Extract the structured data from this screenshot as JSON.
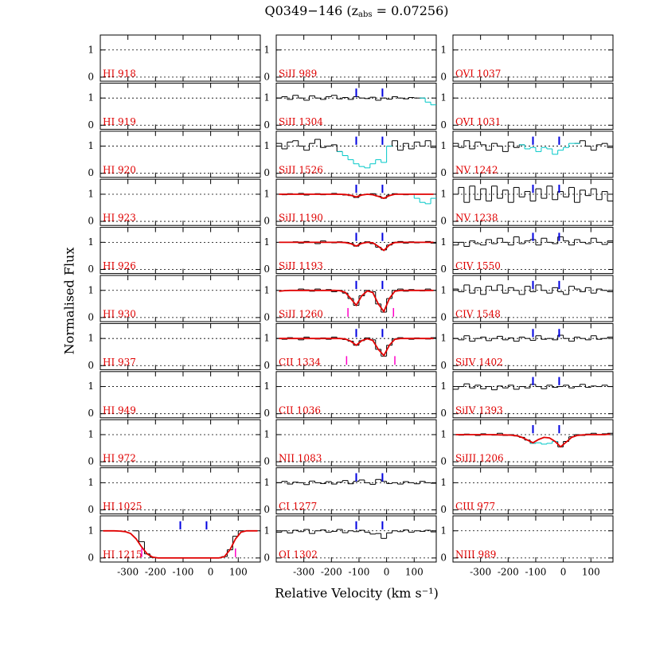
{
  "chart_data": {
    "type": "stacked-spectra",
    "title": "Q0349−146 (z",
    "title_sub": "abs",
    "title_end": " = 0.07256)",
    "xlabel": "Relative Velocity (km s⁻¹)",
    "ylabel": "Normalised Flux",
    "xlim": [
      -400,
      180
    ],
    "ylim": [
      -0.15,
      1.55
    ],
    "xticks": [
      -300,
      -200,
      -100,
      0,
      100
    ],
    "yticks": [
      0,
      1
    ],
    "grid": true,
    "colors": {
      "flux": "#000000",
      "blend": "#00c8c8",
      "fit": "#e00000",
      "components": "#0000e0",
      "markers": "#ff00c8",
      "label": "#e00000"
    },
    "velocity_grid": [
      -390,
      -370,
      -350,
      -330,
      -310,
      -290,
      -270,
      -250,
      -230,
      -210,
      -190,
      -170,
      -150,
      -130,
      -110,
      -90,
      -70,
      -50,
      -30,
      -10,
      10,
      30,
      50,
      70,
      90,
      110,
      130,
      150,
      170
    ],
    "columns": [
      [
        {
          "label": "HI 918"
        },
        {
          "label": "HI 919"
        },
        {
          "label": "HI 920"
        },
        {
          "label": "HI 923"
        },
        {
          "label": "HI 926"
        },
        {
          "label": "HI 930"
        },
        {
          "label": "HI 937"
        },
        {
          "label": "HI 949"
        },
        {
          "label": "HI 972"
        },
        {
          "label": "HI 1025"
        },
        {
          "label": "HI 1215",
          "components": [
            -110,
            -15
          ],
          "markers": [
            -250,
            90
          ],
          "flux": [
            null,
            null,
            null,
            null,
            null,
            null,
            1.0,
            0.6,
            0.15,
            0.02,
            0.0,
            0.0,
            0.0,
            0.0,
            0.0,
            0.0,
            0.0,
            0.0,
            0.0,
            0.0,
            0.0,
            0.0,
            0.05,
            0.3,
            0.8,
            1.0,
            null,
            null,
            null
          ],
          "fit": [
            1,
            1,
            1,
            0.99,
            0.97,
            0.9,
            0.7,
            0.4,
            0.15,
            0.03,
            0,
            0,
            0,
            0,
            0,
            0,
            0,
            0,
            0,
            0,
            0,
            0,
            0.05,
            0.3,
            0.7,
            0.95,
            1,
            1,
            1
          ]
        }
      ],
      [
        {
          "label": "SiII 989"
        },
        {
          "label": "SiII 1304",
          "components": [
            -110,
            -15
          ],
          "flux": [
            1.0,
            1.05,
            0.95,
            1.1,
            1.0,
            0.92,
            1.08,
            1.0,
            0.95,
            1.05,
            1.1,
            0.97,
            1.02,
            0.95,
            1.05,
            1.0,
            0.98,
            1.03,
            0.92,
            1.0,
            0.96,
            1.05,
            1.0,
            0.97,
            1.02,
            1.0,
            1.0,
            null,
            null
          ],
          "blend": [
            null,
            null,
            null,
            null,
            null,
            null,
            null,
            null,
            null,
            null,
            null,
            null,
            null,
            null,
            null,
            null,
            null,
            null,
            null,
            null,
            null,
            null,
            null,
            null,
            null,
            null,
            1.0,
            0.85,
            0.75
          ]
        },
        {
          "label": "SiII 1526",
          "components": [
            -110,
            -15
          ],
          "flux": [
            1.1,
            0.9,
            1.15,
            1.2,
            1.0,
            0.85,
            1.1,
            1.25,
            0.95,
            1.0,
            1.05,
            0.8,
            null,
            null,
            null,
            null,
            null,
            null,
            null,
            null,
            1.0,
            1.2,
            0.85,
            1.1,
            0.9,
            1.15,
            1.0,
            1.2,
            0.95
          ],
          "blend": [
            null,
            null,
            null,
            null,
            null,
            null,
            null,
            null,
            null,
            null,
            null,
            0.8,
            0.65,
            0.5,
            0.35,
            0.25,
            0.2,
            0.35,
            0.5,
            0.4,
            1.0,
            null,
            null,
            null,
            null,
            null,
            null,
            null,
            null
          ]
        },
        {
          "label": "SiII 1190",
          "components": [
            -110,
            -15
          ],
          "flux": [
            1.0,
            0.98,
            1.02,
            1.0,
            1.03,
            0.97,
            1.0,
            1.02,
            0.98,
            1.0,
            1.03,
            0.99,
            0.97,
            0.95,
            0.88,
            0.98,
            1.0,
            1.02,
            0.93,
            0.85,
            0.97,
            1.02,
            1.0,
            0.98,
            1.0,
            null,
            null,
            null,
            null
          ],
          "blend": [
            null,
            null,
            null,
            null,
            null,
            null,
            null,
            null,
            null,
            null,
            null,
            null,
            null,
            null,
            null,
            null,
            null,
            null,
            null,
            null,
            null,
            null,
            null,
            null,
            1.0,
            0.85,
            0.7,
            0.65,
            0.85
          ],
          "fit": [
            1,
            1,
            1,
            1,
            1,
            1,
            1,
            1,
            1,
            1,
            1,
            1,
            0.99,
            0.96,
            0.9,
            0.97,
            1,
            0.98,
            0.92,
            0.85,
            0.95,
            1,
            1,
            1,
            1,
            1,
            1,
            1,
            1
          ]
        },
        {
          "label": "SiII 1193",
          "components": [
            -110,
            -15
          ],
          "flux": [
            null,
            null,
            1.0,
            1.02,
            0.97,
            1.03,
            1.0,
            0.95,
            1.05,
            1.0,
            0.98,
            1.02,
            1.0,
            0.96,
            0.86,
            0.97,
            1.02,
            0.95,
            0.82,
            0.72,
            0.9,
            1.0,
            1.03,
            0.97,
            1.02,
            0.98,
            1.0,
            1.03,
            0.97
          ],
          "fit": [
            1,
            1,
            1,
            1,
            1,
            1,
            1,
            1,
            1,
            1,
            1,
            1,
            0.99,
            0.95,
            0.86,
            0.96,
            1,
            0.98,
            0.85,
            0.7,
            0.9,
            0.99,
            1,
            1,
            1,
            1,
            1,
            1,
            1
          ]
        },
        {
          "label": "SiII 1260",
          "components": [
            -110,
            -15
          ],
          "markers": [
            -140,
            25
          ],
          "flux": [
            null,
            null,
            null,
            1.0,
            1.05,
            1.02,
            0.97,
            1.05,
            1.0,
            1.03,
            0.95,
            1.0,
            0.9,
            0.7,
            0.45,
            0.8,
            1.0,
            0.95,
            0.5,
            0.2,
            0.7,
            1.0,
            1.05,
            0.97,
            1.03,
            1.0,
            0.98,
            1.05,
            1.0
          ],
          "fit": [
            0.97,
            0.99,
            1,
            1,
            1,
            1,
            1,
            1,
            1,
            1,
            1,
            0.99,
            0.93,
            0.7,
            0.45,
            0.8,
            0.98,
            0.92,
            0.5,
            0.22,
            0.7,
            0.97,
            1,
            1,
            1,
            1,
            1,
            1,
            1
          ]
        },
        {
          "label": "CII 1334",
          "components": [
            -110,
            -15
          ],
          "markers": [
            -145,
            30
          ],
          "flux": [
            1.0,
            0.97,
            1.03,
            1.0,
            0.95,
            1.05,
            1.0,
            0.98,
            1.02,
            0.97,
            1.05,
            1.0,
            0.96,
            0.9,
            0.75,
            0.92,
            1.02,
            0.95,
            0.6,
            0.35,
            0.75,
            0.98,
            1.03,
            1.0,
            0.97,
            1.02,
            1.0,
            0.98,
            1.03
          ],
          "fit": [
            1,
            1,
            1,
            1,
            1,
            1,
            1,
            1,
            1,
            1,
            1,
            1,
            0.98,
            0.9,
            0.75,
            0.92,
            0.99,
            0.93,
            0.6,
            0.37,
            0.75,
            0.97,
            1,
            1,
            1,
            1,
            1,
            1,
            1
          ]
        },
        {
          "label": "CII 1036"
        },
        {
          "label": "NII 1083"
        },
        {
          "label": "CI 1277",
          "components": [
            -110,
            -15
          ],
          "flux": [
            1.0,
            1.05,
            0.95,
            1.02,
            1.0,
            0.93,
            1.06,
            1.0,
            0.97,
            1.04,
            0.95,
            1.02,
            1.08,
            0.96,
            1.05,
            1.1,
            1.0,
            0.94,
            1.12,
            1.05,
            0.97,
            1.0,
            0.95,
            1.04,
            1.0,
            0.96,
            1.05,
            1.0,
            0.98
          ]
        },
        {
          "label": "OI 1302",
          "components": [
            -110,
            -15
          ],
          "flux": [
            0.95,
            1.0,
            0.92,
            1.02,
            0.97,
            1.05,
            0.9,
            1.0,
            1.03,
            0.95,
            0.98,
            1.05,
            0.93,
            1.0,
            0.97,
            1.02,
            0.95,
            0.88,
            0.9,
            0.72,
            0.92,
            1.0,
            0.97,
            1.03,
            0.95,
            1.0,
            0.98,
            1.02,
            0.96
          ]
        }
      ],
      [
        {
          "label": "OVI 1037"
        },
        {
          "label": "OVI 1031"
        },
        {
          "label": "NV 1242",
          "components": [
            -110,
            -15
          ],
          "flux": [
            1.1,
            0.95,
            1.2,
            0.9,
            1.15,
            1.05,
            0.85,
            1.1,
            1.0,
            0.8,
            1.15,
            0.95,
            1.05,
            null,
            null,
            null,
            null,
            null,
            null,
            null,
            null,
            null,
            1.1,
            1.2,
            1.0,
            0.85,
            1.05,
            1.1,
            0.95
          ],
          "blend": [
            null,
            null,
            null,
            null,
            null,
            null,
            null,
            null,
            null,
            null,
            null,
            null,
            1.05,
            0.9,
            0.95,
            0.8,
            0.95,
            0.9,
            0.7,
            0.85,
            0.95,
            1.1,
            1.1,
            null,
            null,
            null,
            null,
            null,
            null
          ]
        },
        {
          "label": "NV 1238",
          "components": [
            -110,
            -15
          ],
          "flux": [
            1.0,
            1.25,
            0.7,
            1.3,
            0.8,
            1.2,
            0.75,
            1.3,
            0.85,
            1.15,
            0.7,
            1.25,
            0.9,
            1.1,
            0.75,
            1.2,
            0.85,
            1.3,
            0.8,
            1.1,
            0.9,
            1.25,
            0.7,
            1.15,
            0.95,
            1.2,
            0.8,
            1.1,
            0.75
          ]
        },
        {
          "label": "CIV 1550",
          "components": [
            -110,
            -15
          ],
          "flux": [
            0.9,
            1.0,
            0.85,
            1.05,
            0.95,
            0.9,
            1.1,
            0.95,
            1.15,
            1.0,
            0.9,
            1.2,
            0.95,
            1.05,
            1.1,
            0.9,
            1.15,
            1.0,
            0.95,
            1.2,
            1.05,
            0.9,
            1.1,
            1.0,
            0.95,
            1.15,
            1.0,
            0.92,
            1.05
          ]
        },
        {
          "label": "CIV 1548",
          "components": [
            -110,
            -15
          ],
          "flux": [
            1.05,
            0.95,
            1.2,
            0.9,
            1.1,
            0.85,
            1.15,
            1.0,
            1.2,
            0.9,
            1.1,
            1.0,
            0.85,
            1.15,
            0.95,
            1.2,
            1.0,
            0.9,
            1.1,
            0.95,
            0.85,
            1.15,
            1.05,
            0.95,
            1.1,
            0.9,
            1.05,
            1.0,
            0.95
          ]
        },
        {
          "label": "SiIV 1402",
          "components": [
            -110,
            -15
          ],
          "flux": [
            1.0,
            0.95,
            1.1,
            0.9,
            1.0,
            1.05,
            0.92,
            1.0,
            1.08,
            0.95,
            1.02,
            0.9,
            1.05,
            1.0,
            0.93,
            1.1,
            0.97,
            1.0,
            0.95,
            1.12,
            1.0,
            0.9,
            1.05,
            1.0,
            0.95,
            1.1,
            0.97,
            1.0,
            1.05
          ]
        },
        {
          "label": "SiIV 1393",
          "components": [
            -110,
            -15
          ],
          "flux": [
            0.9,
            1.0,
            1.1,
            0.95,
            1.05,
            0.92,
            1.0,
            0.88,
            1.02,
            0.95,
            1.05,
            0.9,
            1.0,
            0.95,
            1.08,
            1.0,
            0.92,
            1.05,
            0.97,
            1.0,
            1.05,
            0.95,
            1.0,
            1.08,
            0.97,
            1.02,
            1.0,
            1.05,
            1.0
          ]
        },
        {
          "label": "SiIII 1206",
          "components": [
            -110,
            -15
          ],
          "flux": [
            1.0,
            0.98,
            1.02,
            1.0,
            0.97,
            1.03,
            1.0,
            0.98,
            1.05,
            0.97,
            1.0,
            0.95,
            0.9,
            0.8,
            0.68,
            null,
            null,
            null,
            0.75,
            0.55,
            0.75,
            0.92,
            1.0,
            0.97,
            1.02,
            1.05,
            1.0,
            1.03,
            1.05
          ],
          "blend": [
            null,
            null,
            null,
            null,
            null,
            null,
            null,
            null,
            null,
            null,
            null,
            null,
            null,
            null,
            0.68,
            0.7,
            0.65,
            0.68,
            0.75,
            null,
            null,
            null,
            null,
            null,
            null,
            null,
            null,
            null,
            null
          ],
          "fit": [
            1,
            1,
            1,
            1,
            1,
            1,
            1,
            1,
            0.99,
            0.99,
            0.98,
            0.96,
            0.9,
            0.8,
            0.7,
            0.82,
            0.9,
            0.88,
            0.75,
            0.55,
            0.72,
            0.9,
            0.97,
            0.99,
            1,
            1,
            1,
            1,
            1.02
          ]
        },
        {
          "label": "CIII 977"
        },
        {
          "label": "NIII 989"
        }
      ]
    ]
  }
}
